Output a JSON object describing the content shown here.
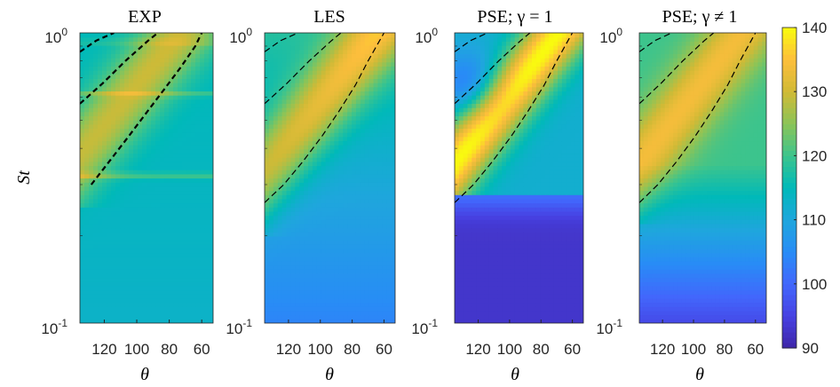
{
  "chart_data": [
    {
      "type": "heatmap",
      "title": "EXP",
      "xlabel": "θ",
      "ylabel": "St",
      "x_ticks": [
        "120",
        "100",
        "80",
        "60"
      ],
      "x_tick_values": [
        120,
        100,
        80,
        60
      ],
      "xlim": [
        135,
        53
      ],
      "y_ticks": [
        {
          "base": "10",
          "exp": "0"
        },
        {
          "base": "10",
          "exp": "-1"
        }
      ],
      "ylim": [
        0.1,
        1
      ],
      "y_scale": "log",
      "colormap": "parula",
      "field": "exp",
      "dashed_curves": [
        [
          [
            135,
            0.86
          ],
          [
            125,
            0.94
          ],
          [
            114,
            1.0
          ]
        ],
        [
          [
            135,
            0.57
          ],
          [
            121,
            0.67
          ],
          [
            107,
            0.8
          ],
          [
            93,
            0.94
          ],
          [
            87,
            1.0
          ]
        ],
        [
          [
            128,
            0.3
          ],
          [
            117,
            0.36
          ],
          [
            105,
            0.44
          ],
          [
            93,
            0.54
          ],
          [
            83,
            0.64
          ],
          [
            73,
            0.76
          ],
          [
            64,
            0.9
          ],
          [
            60,
            1.0
          ]
        ]
      ]
    },
    {
      "type": "heatmap",
      "title": "LES",
      "xlabel": "θ",
      "ylabel": "",
      "x_ticks": [
        "120",
        "100",
        "80",
        "60"
      ],
      "x_tick_values": [
        120,
        100,
        80,
        60
      ],
      "xlim": [
        135,
        53
      ],
      "y_ticks": [
        {
          "base": "10",
          "exp": "0"
        },
        {
          "base": "10",
          "exp": "-1"
        }
      ],
      "ylim": [
        0.1,
        1
      ],
      "y_scale": "log",
      "colormap": "parula",
      "field": "les",
      "dashed_curves": [
        [
          [
            135,
            0.86
          ],
          [
            125,
            0.94
          ],
          [
            114,
            1.0
          ]
        ],
        [
          [
            135,
            0.57
          ],
          [
            121,
            0.67
          ],
          [
            107,
            0.8
          ],
          [
            93,
            0.94
          ],
          [
            87,
            1.0
          ]
        ],
        [
          [
            135,
            0.26
          ],
          [
            123,
            0.3
          ],
          [
            111,
            0.36
          ],
          [
            99,
            0.44
          ],
          [
            88,
            0.54
          ],
          [
            78,
            0.66
          ],
          [
            70,
            0.8
          ],
          [
            60,
            1.0
          ]
        ]
      ]
    },
    {
      "type": "heatmap",
      "title": "PSE; γ = 1",
      "xlabel": "θ",
      "ylabel": "",
      "x_ticks": [
        "120",
        "100",
        "80",
        "60"
      ],
      "x_tick_values": [
        120,
        100,
        80,
        60
      ],
      "xlim": [
        135,
        53
      ],
      "y_ticks": [
        {
          "base": "10",
          "exp": "0"
        },
        {
          "base": "10",
          "exp": "-1"
        }
      ],
      "ylim": [
        0.1,
        1
      ],
      "y_scale": "log",
      "colormap": "parula",
      "field": "pse1",
      "dashed_curves": [
        [
          [
            135,
            0.86
          ],
          [
            125,
            0.94
          ],
          [
            114,
            1.0
          ]
        ],
        [
          [
            135,
            0.57
          ],
          [
            121,
            0.67
          ],
          [
            107,
            0.8
          ],
          [
            93,
            0.94
          ],
          [
            87,
            1.0
          ]
        ],
        [
          [
            135,
            0.26
          ],
          [
            123,
            0.3
          ],
          [
            111,
            0.36
          ],
          [
            99,
            0.44
          ],
          [
            88,
            0.54
          ],
          [
            78,
            0.66
          ],
          [
            70,
            0.8
          ],
          [
            60,
            1.0
          ]
        ]
      ]
    },
    {
      "type": "heatmap",
      "title": "PSE; γ ≠ 1",
      "xlabel": "θ",
      "ylabel": "",
      "x_ticks": [
        "120",
        "100",
        "80",
        "60"
      ],
      "x_tick_values": [
        120,
        100,
        80,
        60
      ],
      "xlim": [
        135,
        53
      ],
      "y_ticks": [
        {
          "base": "10",
          "exp": "0"
        },
        {
          "base": "10",
          "exp": "-1"
        }
      ],
      "ylim": [
        0.1,
        1
      ],
      "y_scale": "log",
      "colormap": "parula",
      "field": "pse2",
      "dashed_curves": [
        [
          [
            135,
            0.86
          ],
          [
            125,
            0.94
          ],
          [
            114,
            1.0
          ]
        ],
        [
          [
            135,
            0.57
          ],
          [
            121,
            0.67
          ],
          [
            107,
            0.8
          ],
          [
            93,
            0.94
          ],
          [
            87,
            1.0
          ]
        ],
        [
          [
            135,
            0.26
          ],
          [
            123,
            0.3
          ],
          [
            111,
            0.36
          ],
          [
            99,
            0.44
          ],
          [
            88,
            0.54
          ],
          [
            78,
            0.66
          ],
          [
            70,
            0.8
          ],
          [
            60,
            1.0
          ]
        ]
      ]
    }
  ],
  "colorbar": {
    "colormap": "parula",
    "ticks": [
      "140",
      "130",
      "120",
      "110",
      "100",
      "90"
    ],
    "tick_values": [
      140,
      130,
      120,
      110,
      100,
      90
    ],
    "range": [
      90,
      140
    ]
  }
}
